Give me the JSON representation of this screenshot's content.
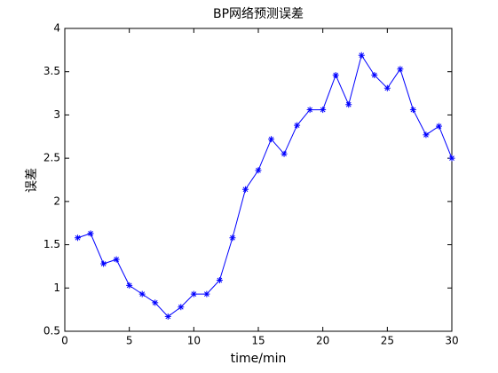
{
  "chart_data": {
    "type": "line",
    "title": "BP网络预测误差",
    "x_label": "time/min",
    "y_label": "误差",
    "x": [
      1,
      2,
      3,
      4,
      5,
      6,
      7,
      8,
      9,
      10,
      11,
      12,
      13,
      14,
      15,
      16,
      17,
      18,
      19,
      20,
      21,
      22,
      23,
      24,
      25,
      26,
      27,
      28,
      29,
      30
    ],
    "series": [
      {
        "color": "#0000ff",
        "marker": "asterisk",
        "values": [
          1.58,
          1.63,
          1.28,
          1.33,
          1.03,
          0.93,
          0.83,
          0.67,
          0.78,
          0.93,
          0.93,
          1.09,
          1.58,
          2.14,
          2.36,
          2.72,
          2.55,
          2.88,
          3.06,
          3.06,
          3.46,
          3.12,
          3.69,
          3.46,
          3.31,
          3.53,
          3.06,
          2.77,
          2.87,
          2.5
        ]
      }
    ],
    "xlim": [
      0,
      30
    ],
    "xticks": [
      0,
      5,
      10,
      15,
      20,
      25,
      30
    ],
    "ylim": [
      0.5,
      4
    ],
    "yticks": [
      0.5,
      1,
      1.5,
      2,
      2.5,
      3,
      3.5,
      4
    ],
    "grid": false
  }
}
